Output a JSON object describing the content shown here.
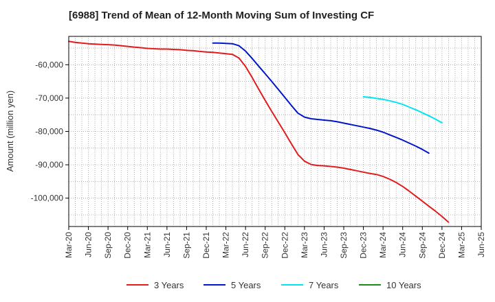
{
  "chart_data": {
    "type": "line",
    "title": "[6988]  Trend of Mean of 12-Month Moving Sum of Investing CF",
    "xlabel": "",
    "ylabel": "Amount (million yen)",
    "ylim": [
      -108500,
      -51500
    ],
    "yticks": [
      -60000,
      -70000,
      -80000,
      -90000,
      -100000
    ],
    "ytick_labels": [
      "-60,000",
      "-70,000",
      "-80,000",
      "-90,000",
      "-100,000"
    ],
    "grid": true,
    "legend_position": "bottom",
    "x_categories": [
      "Mar-20",
      "Jun-20",
      "Sep-20",
      "Dec-20",
      "Mar-21",
      "Jun-21",
      "Sep-21",
      "Dec-21",
      "Mar-22",
      "Jun-22",
      "Sep-22",
      "Dec-22",
      "Mar-23",
      "Jun-23",
      "Sep-23",
      "Dec-23",
      "Mar-24",
      "Jun-24",
      "Sep-24",
      "Dec-24",
      "Mar-25",
      "Jun-25"
    ],
    "x_start": "Mar-20",
    "series": [
      {
        "name": "3 Years",
        "color": "#e31a1c",
        "start_index": 0,
        "values": [
          -53000,
          -53300,
          -53500,
          -53700,
          -53800,
          -53900,
          -54000,
          -54100,
          -54300,
          -54500,
          -54700,
          -54900,
          -55100,
          -55200,
          -55300,
          -55300,
          -55400,
          -55500,
          -55700,
          -55800,
          -56000,
          -56200,
          -56300,
          -56500,
          -56700,
          -56900,
          -58000,
          -60500,
          -63800,
          -67300,
          -70700,
          -74000,
          -77200,
          -80400,
          -83700,
          -86900,
          -88900,
          -89900,
          -90200,
          -90300,
          -90500,
          -90700,
          -91000,
          -91400,
          -91800,
          -92200,
          -92600,
          -92900,
          -93500,
          -94300,
          -95300,
          -96500,
          -97900,
          -99400,
          -100900,
          -102400,
          -103900,
          -105500,
          -107200
        ]
      },
      {
        "name": "5 Years",
        "color": "#0015c9",
        "start_index": 22,
        "values": [
          -53500,
          -53500,
          -53600,
          -53700,
          -54300,
          -55900,
          -58100,
          -60400,
          -62700,
          -65000,
          -67400,
          -69800,
          -72200,
          -74500,
          -75700,
          -76200,
          -76400,
          -76600,
          -76800,
          -77100,
          -77500,
          -77900,
          -78300,
          -78700,
          -79100,
          -79600,
          -80200,
          -81000,
          -81800,
          -82600,
          -83500,
          -84400,
          -85400,
          -86500
        ]
      },
      {
        "name": "7 Years",
        "color": "#00e5f0",
        "start_index": 45,
        "values": [
          -69600,
          -69800,
          -70100,
          -70400,
          -70800,
          -71300,
          -71900,
          -72700,
          -73500,
          -74400,
          -75300,
          -76300,
          -77400
        ]
      },
      {
        "name": "10 Years",
        "color": "#1a8a1a",
        "start_index": 0,
        "values": []
      }
    ]
  }
}
